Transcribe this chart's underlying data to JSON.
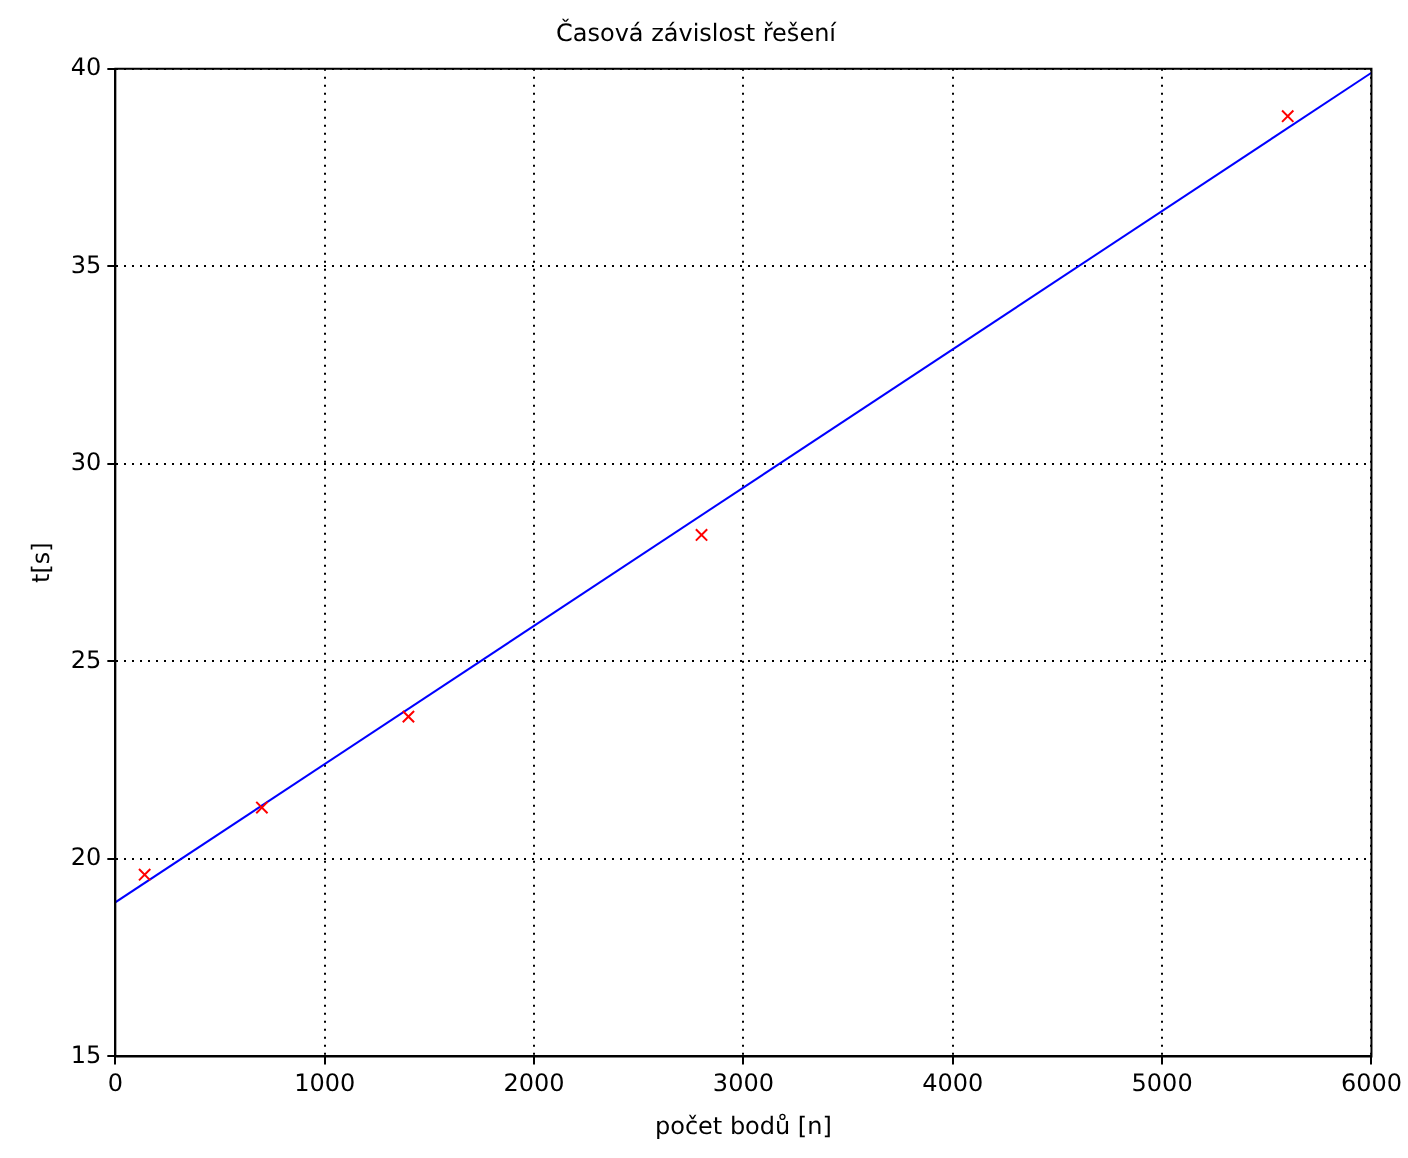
{
  "chart_data": {
    "type": "scatter",
    "title": "Časová závislost řešení",
    "xlabel": "počet bodů [n]",
    "ylabel": "t[s]",
    "xlim": [
      0,
      6000
    ],
    "xticks": [
      0,
      1000,
      2000,
      3000,
      4000,
      5000,
      6000
    ],
    "ylim": [
      15,
      40
    ],
    "yticks": [
      15,
      20,
      25,
      30,
      35,
      40
    ],
    "grid": true,
    "marker": "cross",
    "series": [
      {
        "color": "#ff0000",
        "x": [
          140,
          700,
          1400,
          2800,
          5600
        ],
        "values": [
          19.6,
          21.3,
          23.6,
          28.2,
          38.8
        ]
      },
      {
        "type": "line",
        "marker": "none",
        "line_style": "solid",
        "color": "#0000ff",
        "x": [
          0,
          6000
        ],
        "values": [
          18.9,
          39.9
        ]
      }
    ]
  }
}
